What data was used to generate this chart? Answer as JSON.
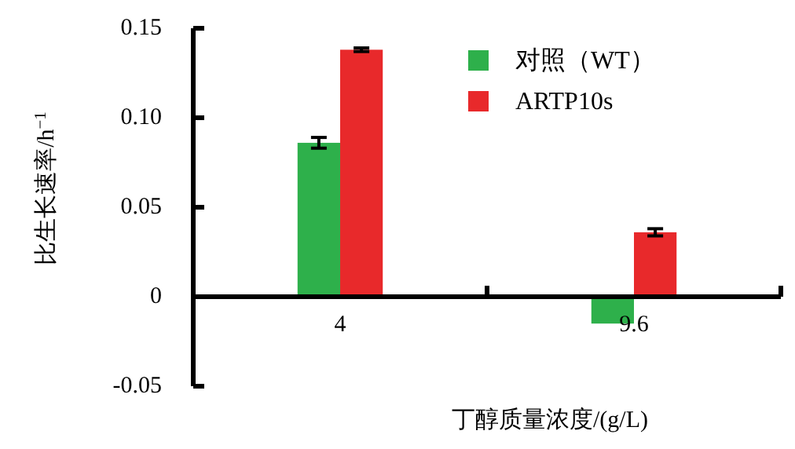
{
  "chart_data": {
    "type": "bar",
    "xlabel": "丁醇质量浓度/(g/L)",
    "ylabel": "比生长速率/h$^{−1}$",
    "categories": [
      "4",
      "9.6"
    ],
    "series": [
      {
        "name": "对照（WT）",
        "color": "#2eb04b",
        "values": [
          0.086,
          -0.015
        ],
        "errors": [
          0.003,
          null
        ]
      },
      {
        "name": "ARTP10s",
        "color": "#e8292b",
        "values": [
          0.138,
          0.036
        ],
        "errors": [
          0.001,
          0.002
        ]
      }
    ],
    "ylim": [
      -0.05,
      0.15
    ],
    "yticks": [
      {
        "value": -0.05,
        "label": "-0.05"
      },
      0,
      0.05,
      {
        "value": 0.1,
        "label": "0.10"
      },
      0.15
    ],
    "grid": false,
    "legend": "top right"
  }
}
